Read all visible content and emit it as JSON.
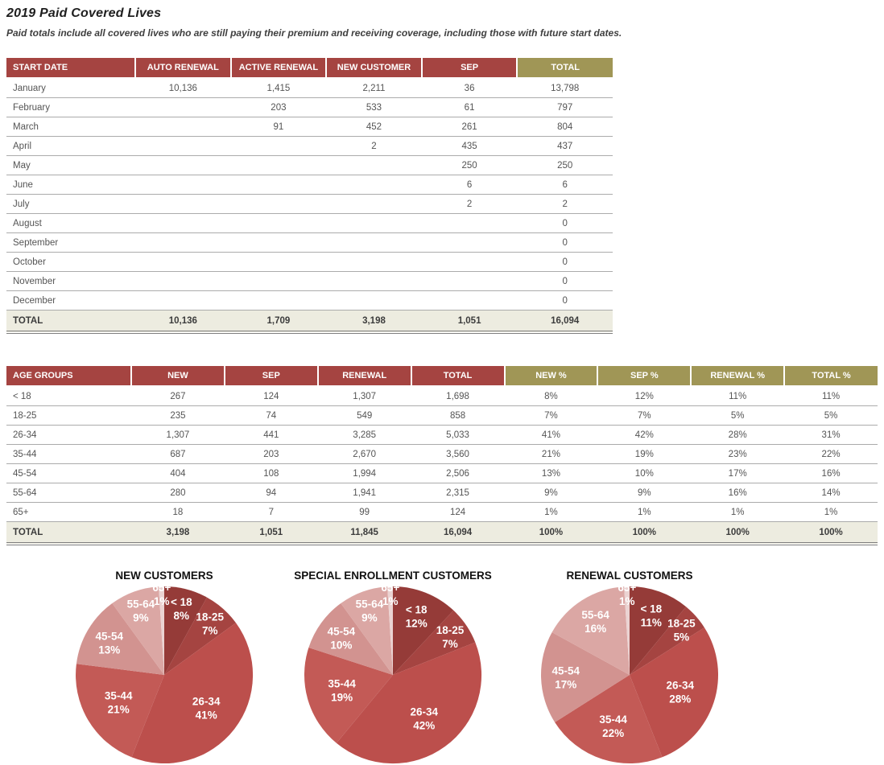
{
  "header": {
    "title": "2019 Paid Covered Lives",
    "subtitle": "Paid totals include all covered lives who are still paying their premium and receiving coverage, including those with future start dates."
  },
  "colors": {
    "header_red": "#A54441",
    "header_olive": "#A09656",
    "total_row_bg": "#EDECE0",
    "pie_palette": [
      "#953B38",
      "#A54441",
      "#BC4F4C",
      "#C35A56",
      "#D29390",
      "#DBA7A4",
      "#EBD3D2"
    ]
  },
  "monthly_table": {
    "columns": [
      {
        "label": "START DATE",
        "type": "red"
      },
      {
        "label": "AUTO RENEWAL",
        "type": "red"
      },
      {
        "label": "ACTIVE RENEWAL",
        "type": "red"
      },
      {
        "label": "NEW CUSTOMER",
        "type": "red"
      },
      {
        "label": "SEP",
        "type": "red"
      },
      {
        "label": "TOTAL",
        "type": "olive"
      }
    ],
    "rows": [
      [
        "January",
        "10,136",
        "1,415",
        "2,211",
        "36",
        "13,798"
      ],
      [
        "February",
        "",
        "203",
        "533",
        "61",
        "797"
      ],
      [
        "March",
        "",
        "91",
        "452",
        "261",
        "804"
      ],
      [
        "April",
        "",
        "",
        "2",
        "435",
        "437"
      ],
      [
        "May",
        "",
        "",
        "",
        "250",
        "250"
      ],
      [
        "June",
        "",
        "",
        "",
        "6",
        "6"
      ],
      [
        "July",
        "",
        "",
        "",
        "2",
        "2"
      ],
      [
        "August",
        "",
        "",
        "",
        "",
        "0"
      ],
      [
        "September",
        "",
        "",
        "",
        "",
        "0"
      ],
      [
        "October",
        "",
        "",
        "",
        "",
        "0"
      ],
      [
        "November",
        "",
        "",
        "",
        "",
        "0"
      ],
      [
        "December",
        "",
        "",
        "",
        "",
        "0"
      ]
    ],
    "total_row": [
      "TOTAL",
      "10,136",
      "1,709",
      "3,198",
      "1,051",
      "16,094"
    ]
  },
  "age_table": {
    "columns": [
      {
        "label": "AGE GROUPS",
        "type": "red"
      },
      {
        "label": "NEW",
        "type": "red"
      },
      {
        "label": "SEP",
        "type": "red"
      },
      {
        "label": "RENEWAL",
        "type": "red"
      },
      {
        "label": "TOTAL",
        "type": "red"
      },
      {
        "label": "NEW %",
        "type": "olive"
      },
      {
        "label": "SEP %",
        "type": "olive"
      },
      {
        "label": "RENEWAL %",
        "type": "olive"
      },
      {
        "label": "TOTAL %",
        "type": "olive"
      }
    ],
    "rows": [
      [
        "< 18",
        "267",
        "124",
        "1,307",
        "1,698",
        "8%",
        "12%",
        "11%",
        "11%"
      ],
      [
        "18-25",
        "235",
        "74",
        "549",
        "858",
        "7%",
        "7%",
        "5%",
        "5%"
      ],
      [
        "26-34",
        "1,307",
        "441",
        "3,285",
        "5,033",
        "41%",
        "42%",
        "28%",
        "31%"
      ],
      [
        "35-44",
        "687",
        "203",
        "2,670",
        "3,560",
        "21%",
        "19%",
        "23%",
        "22%"
      ],
      [
        "45-54",
        "404",
        "108",
        "1,994",
        "2,506",
        "13%",
        "10%",
        "17%",
        "16%"
      ],
      [
        "55-64",
        "280",
        "94",
        "1,941",
        "2,315",
        "9%",
        "9%",
        "16%",
        "14%"
      ],
      [
        "65+",
        "18",
        "7",
        "99",
        "124",
        "1%",
        "1%",
        "1%",
        "1%"
      ]
    ],
    "total_row": [
      "TOTAL",
      "3,198",
      "1,051",
      "11,845",
      "16,094",
      "100%",
      "100%",
      "100%",
      "100%"
    ]
  },
  "chart_data": [
    {
      "type": "pie",
      "title": "NEW CUSTOMERS",
      "categories": [
        "< 18",
        "18-25",
        "26-34",
        "35-44",
        "45-54",
        "55-64",
        "65+"
      ],
      "values": [
        8,
        7,
        41,
        21,
        13,
        9,
        1
      ],
      "unit": "%",
      "start_angle_deg": 0,
      "direction": "clockwise",
      "label_position": "inside",
      "colors": [
        "#953B38",
        "#A54441",
        "#BC4F4C",
        "#C35A56",
        "#D29390",
        "#DBA7A4",
        "#EBD3D2"
      ]
    },
    {
      "type": "pie",
      "title": "SPECIAL ENROLLMENT CUSTOMERS",
      "categories": [
        "< 18",
        "18-25",
        "26-34",
        "35-44",
        "45-54",
        "55-64",
        "65+"
      ],
      "values": [
        12,
        7,
        42,
        19,
        10,
        9,
        1
      ],
      "unit": "%",
      "start_angle_deg": 0,
      "direction": "clockwise",
      "label_position": "inside",
      "colors": [
        "#953B38",
        "#A54441",
        "#BC4F4C",
        "#C35A56",
        "#D29390",
        "#DBA7A4",
        "#EBD3D2"
      ]
    },
    {
      "type": "pie",
      "title": "RENEWAL CUSTOMERS",
      "categories": [
        "< 18",
        "18-25",
        "26-34",
        "35-44",
        "45-54",
        "55-64",
        "65+"
      ],
      "values": [
        11,
        5,
        28,
        22,
        17,
        16,
        1
      ],
      "unit": "%",
      "start_angle_deg": 0,
      "direction": "clockwise",
      "label_position": "inside",
      "colors": [
        "#953B38",
        "#A54441",
        "#BC4F4C",
        "#C35A56",
        "#D29390",
        "#DBA7A4",
        "#EBD3D2"
      ]
    }
  ]
}
